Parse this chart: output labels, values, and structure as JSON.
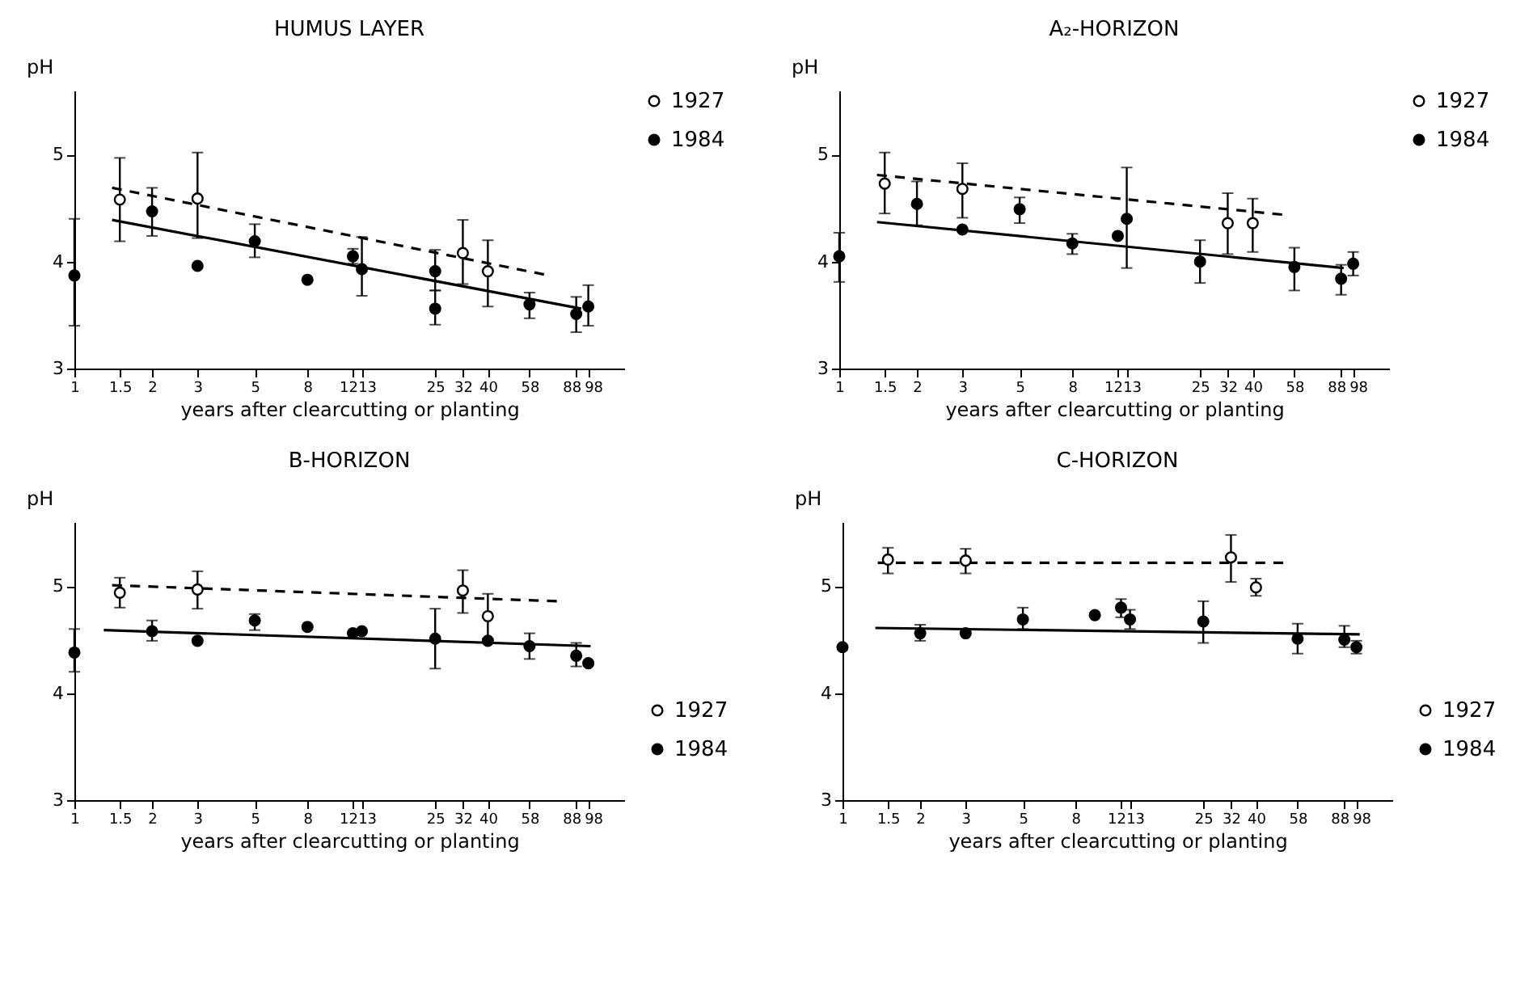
{
  "chart_data": [
    {
      "type": "scatter",
      "title": "HUMUS LAYER",
      "xlabel": "years after clearcutting or planting",
      "ylabel": "pH",
      "log": "x",
      "xlim": [
        1,
        135
      ],
      "xticks": [
        1,
        1.5,
        2,
        3,
        5,
        8,
        12,
        13,
        25,
        32,
        40,
        58,
        88,
        98
      ],
      "ylim": [
        3,
        5.6
      ],
      "yticks": [
        3,
        4,
        5
      ],
      "grid": false,
      "legend": "right",
      "series": [
        {
          "name": "1927",
          "color": "#ffffff",
          "marker": "circle",
          "x": [
            1.5,
            3,
            32,
            40
          ],
          "values": [
            4.58,
            4.59,
            4.08,
            3.91
          ],
          "errors": [
            [
              4.19,
              4.97
            ],
            [
              4.22,
              5.02
            ],
            [
              3.79,
              4.39
            ],
            [
              3.58,
              4.2
            ]
          ]
        },
        {
          "name": "1984",
          "color": "#000000",
          "marker": "circle",
          "x": [
            1,
            2,
            3,
            5,
            8,
            12,
            13,
            25,
            25,
            58,
            88,
            98
          ],
          "values": [
            3.87,
            4.47,
            3.96,
            4.19,
            3.83,
            4.05,
            3.93,
            3.91,
            3.56,
            3.6,
            3.51,
            3.58
          ],
          "errors": [
            [
              3.4,
              4.4
            ],
            [
              4.24,
              4.69
            ],
            null,
            [
              4.04,
              4.35
            ],
            null,
            [
              3.98,
              4.12
            ],
            [
              3.68,
              4.23
            ],
            [
              3.73,
              4.11
            ],
            [
              3.41,
              3.73
            ],
            [
              3.47,
              3.71
            ],
            [
              3.34,
              3.67
            ],
            [
              3.4,
              3.78
            ]
          ]
        },
        {
          "type": "line",
          "color": "#000000",
          "line_style": "dashed",
          "x": [
            1.4,
            66
          ],
          "values": [
            4.69,
            3.88
          ]
        },
        {
          "type": "line",
          "color": "#000000",
          "line_style": "solid",
          "x": [
            1.4,
            92
          ],
          "values": [
            4.39,
            3.56
          ]
        }
      ]
    },
    {
      "type": "scatter",
      "title": "A₂-HORIZON",
      "xlabel": "years after clearcutting or planting",
      "ylabel": "pH",
      "log": "x",
      "xlim": [
        1,
        135
      ],
      "xticks": [
        1,
        1.5,
        2,
        3,
        5,
        8,
        12,
        13,
        25,
        32,
        40,
        58,
        88,
        98
      ],
      "ylim": [
        3,
        5.6
      ],
      "yticks": [
        3,
        4,
        5
      ],
      "grid": false,
      "legend": "right",
      "series": [
        {
          "name": "1927",
          "color": "#ffffff",
          "marker": "circle",
          "x": [
            1.5,
            3,
            32,
            40
          ],
          "values": [
            4.73,
            4.68,
            4.36,
            4.36
          ],
          "errors": [
            [
              4.45,
              5.02
            ],
            [
              4.41,
              4.92
            ],
            [
              4.07,
              4.64
            ],
            [
              4.09,
              4.59
            ]
          ]
        },
        {
          "name": "1984",
          "color": "#000000",
          "marker": "circle",
          "x": [
            1,
            2,
            3,
            5,
            8,
            12,
            13,
            25,
            58,
            88,
            98
          ],
          "values": [
            4.05,
            4.54,
            4.3,
            4.49,
            4.17,
            4.24,
            4.4,
            4.0,
            3.95,
            3.84,
            3.98
          ],
          "errors": [
            [
              3.81,
              4.27
            ],
            [
              4.34,
              4.75
            ],
            null,
            [
              4.36,
              4.6
            ],
            [
              4.07,
              4.26
            ],
            null,
            [
              3.94,
              4.88
            ],
            [
              3.8,
              4.2
            ],
            [
              3.73,
              4.13
            ],
            [
              3.69,
              3.97
            ],
            [
              3.87,
              4.09
            ]
          ]
        },
        {
          "type": "line",
          "color": "#000000",
          "line_style": "dashed",
          "x": [
            1.4,
            52
          ],
          "values": [
            4.81,
            4.44
          ]
        },
        {
          "type": "line",
          "color": "#000000",
          "line_style": "solid",
          "x": [
            1.4,
            90
          ],
          "values": [
            4.37,
            3.94
          ]
        }
      ]
    },
    {
      "type": "scatter",
      "title": "B-HORIZON",
      "xlabel": "years after clearcutting or planting",
      "ylabel": "pH",
      "log": "x",
      "xlim": [
        1,
        135
      ],
      "xticks": [
        1,
        1.5,
        2,
        3,
        5,
        8,
        12,
        13,
        25,
        32,
        40,
        58,
        88,
        98
      ],
      "ylim": [
        3,
        5.6
      ],
      "yticks": [
        3,
        4,
        5
      ],
      "grid": false,
      "legend": "bottom right",
      "series": [
        {
          "name": "1927",
          "color": "#ffffff",
          "marker": "circle",
          "x": [
            1.5,
            3,
            32,
            40
          ],
          "values": [
            4.94,
            4.97,
            4.96,
            4.72
          ],
          "errors": [
            [
              4.8,
              5.08
            ],
            [
              4.79,
              5.14
            ],
            [
              4.75,
              5.15
            ],
            [
              4.51,
              4.93
            ]
          ]
        },
        {
          "name": "1984",
          "color": "#000000",
          "marker": "circle",
          "x": [
            1,
            2,
            3,
            5,
            8,
            12,
            13,
            25,
            40,
            58,
            88,
            98
          ],
          "values": [
            4.38,
            4.58,
            4.49,
            4.68,
            4.62,
            4.56,
            4.58,
            4.51,
            4.49,
            4.44,
            4.35,
            4.28
          ],
          "errors": [
            [
              4.2,
              4.6
            ],
            [
              4.49,
              4.68
            ],
            null,
            [
              4.59,
              4.74
            ],
            null,
            null,
            null,
            [
              4.23,
              4.79
            ],
            null,
            [
              4.32,
              4.56
            ],
            [
              4.25,
              4.47
            ],
            null
          ]
        },
        {
          "type": "line",
          "color": "#000000",
          "line_style": "dashed",
          "x": [
            1.4,
            74
          ],
          "values": [
            5.01,
            4.86
          ]
        },
        {
          "type": "line",
          "color": "#000000",
          "line_style": "solid",
          "x": [
            1.3,
            100
          ],
          "values": [
            4.59,
            4.44
          ]
        }
      ]
    },
    {
      "type": "scatter",
      "title": "C-HORIZON",
      "xlabel": "years after clearcutting or planting",
      "ylabel": "pH",
      "log": "x",
      "xlim": [
        1,
        135
      ],
      "xticks": [
        1,
        1.5,
        2,
        3,
        5,
        8,
        12,
        13,
        25,
        32,
        40,
        58,
        88,
        98
      ],
      "ylim": [
        3,
        5.6
      ],
      "yticks": [
        3,
        4,
        5
      ],
      "grid": false,
      "legend": "bottom right",
      "series": [
        {
          "name": "1927",
          "color": "#ffffff",
          "marker": "circle",
          "x": [
            1.5,
            3,
            32,
            40
          ],
          "values": [
            5.25,
            5.24,
            5.27,
            4.99
          ],
          "errors": [
            [
              5.12,
              5.36
            ],
            [
              5.12,
              5.35
            ],
            [
              5.04,
              5.48
            ],
            [
              4.91,
              5.07
            ]
          ]
        },
        {
          "name": "1984",
          "color": "#000000",
          "marker": "circle",
          "x": [
            1,
            2,
            3,
            5,
            9.5,
            12,
            13,
            25,
            58,
            88,
            98
          ],
          "values": [
            4.43,
            4.56,
            4.56,
            4.69,
            4.73,
            4.8,
            4.69,
            4.67,
            4.51,
            4.5,
            4.43
          ],
          "errors": [
            null,
            [
              4.49,
              4.64
            ],
            null,
            [
              4.6,
              4.8
            ],
            null,
            [
              4.71,
              4.88
            ],
            [
              4.6,
              4.78
            ],
            [
              4.47,
              4.86
            ],
            [
              4.37,
              4.65
            ],
            [
              4.43,
              4.63
            ],
            [
              4.37,
              4.49
            ]
          ]
        },
        {
          "type": "line",
          "color": "#000000",
          "line_style": "dashed",
          "x": [
            1.37,
            51
          ],
          "values": [
            5.22,
            5.22
          ]
        },
        {
          "type": "line",
          "color": "#000000",
          "line_style": "solid",
          "x": [
            1.34,
            101
          ],
          "values": [
            4.61,
            4.55
          ]
        }
      ]
    }
  ]
}
